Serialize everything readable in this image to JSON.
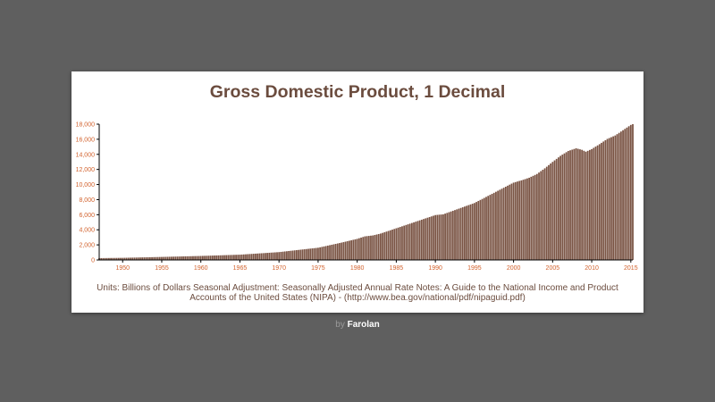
{
  "accent_color": "#7a5444",
  "text_color": "#6b4c3e",
  "tick_color": "#d2622d",
  "byline": {
    "prefix": "by",
    "author": "Farolan"
  },
  "footnote": "Units: Billions of Dollars Seasonal Adjustment: Seasonally Adjusted Annual Rate Notes: A Guide to the National Income and Product Accounts of the United States (NIPA) - (http://www.bea.gov/national/pdf/nipaguid.pdf)",
  "chart_data": {
    "type": "bar",
    "title": "Gross Domestic Product, 1 Decimal",
    "xlabel": "",
    "ylabel": "",
    "grid": false,
    "frequency": "quarterly",
    "x_start": 1947.0,
    "x_ticks": [
      1950,
      1955,
      1960,
      1965,
      1970,
      1975,
      1980,
      1985,
      1990,
      1995,
      2000,
      2005,
      2010,
      2015
    ],
    "y_ticks": [
      0,
      2000,
      4000,
      6000,
      8000,
      10000,
      12000,
      14000,
      16000,
      18000
    ],
    "xlim": [
      1947.0,
      2015.25
    ],
    "ylim": [
      0,
      18000
    ],
    "anchors": [
      [
        1947.0,
        243
      ],
      [
        1950.0,
        280
      ],
      [
        1955.0,
        400
      ],
      [
        1960.0,
        530
      ],
      [
        1965.0,
        700
      ],
      [
        1970.0,
        1040
      ],
      [
        1975.0,
        1620
      ],
      [
        1978.0,
        2300
      ],
      [
        1980.0,
        2800
      ],
      [
        1981.0,
        3130
      ],
      [
        1982.0,
        3250
      ],
      [
        1983.0,
        3500
      ],
      [
        1985.0,
        4200
      ],
      [
        1990.0,
        5950
      ],
      [
        1991.0,
        6050
      ],
      [
        1995.0,
        7550
      ],
      [
        2000.0,
        10250
      ],
      [
        2001.0,
        10550
      ],
      [
        2002.0,
        10900
      ],
      [
        2003.0,
        11400
      ],
      [
        2004.0,
        12150
      ],
      [
        2005.0,
        13000
      ],
      [
        2006.0,
        13800
      ],
      [
        2007.0,
        14450
      ],
      [
        2008.0,
        14800
      ],
      [
        2008.75,
        14600
      ],
      [
        2009.25,
        14350
      ],
      [
        2010.0,
        14700
      ],
      [
        2011.0,
        15350
      ],
      [
        2012.0,
        16050
      ],
      [
        2013.0,
        16500
      ],
      [
        2014.0,
        17200
      ],
      [
        2015.0,
        17900
      ],
      [
        2015.25,
        18000
      ]
    ]
  }
}
